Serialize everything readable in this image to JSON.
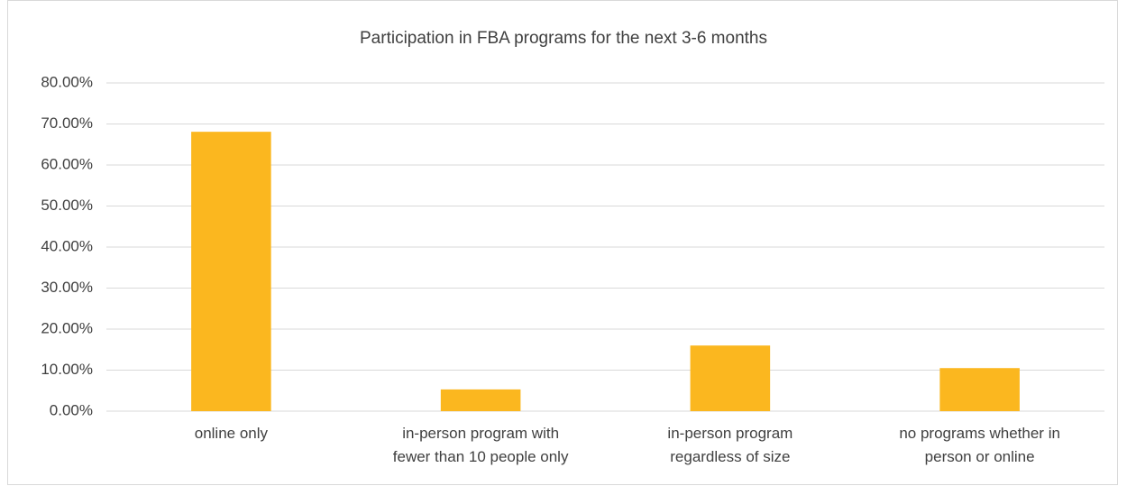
{
  "chart_data": {
    "type": "bar",
    "title": "Participation in FBA programs for the next 3-6 months",
    "categories": [
      "online only",
      "in-person program with\nfewer than 10 people only",
      "in-person program\nregardless of size",
      "no programs whether in\nperson or online"
    ],
    "values": [
      68.1,
      5.3,
      16.0,
      10.5
    ],
    "color": "#fbb71f",
    "ylim": [
      0,
      80
    ],
    "yticks": [
      {
        "value": 0,
        "label": "0.00%"
      },
      {
        "value": 10,
        "label": "10.00%"
      },
      {
        "value": 20,
        "label": "20.00%"
      },
      {
        "value": 30,
        "label": "30.00%"
      },
      {
        "value": 40,
        "label": "40.00%"
      },
      {
        "value": 50,
        "label": "50.00%"
      },
      {
        "value": 60,
        "label": "60.00%"
      },
      {
        "value": 70,
        "label": "70.00%"
      },
      {
        "value": 80,
        "label": "80.00%"
      }
    ],
    "grid": true
  }
}
